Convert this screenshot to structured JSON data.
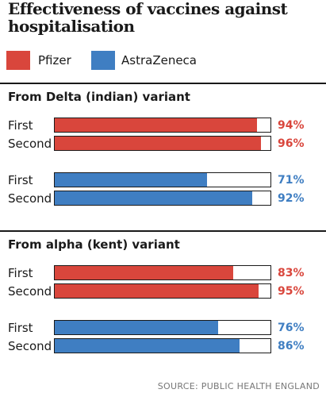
{
  "title": "Effectiveness of vaccines against hospitalisation",
  "legend": [
    {
      "label": "Pfizer",
      "color": "#d9463c"
    },
    {
      "label": "AstraZeneca",
      "color": "#3f7ec2"
    }
  ],
  "source": "SOURCE: PUBLIC HEALTH ENGLAND",
  "chart_data": {
    "type": "bar",
    "orientation": "horizontal",
    "title": "Effectiveness of vaccines against hospitalisation",
    "xlim": [
      0,
      100
    ],
    "unit": "%",
    "grid": false,
    "legend_position": "top-left",
    "series": [
      {
        "name": "Pfizer",
        "color": "#d9463c"
      },
      {
        "name": "AstraZeneca",
        "color": "#3f7ec2"
      }
    ],
    "groups": [
      {
        "title": "From Delta (indian) variant",
        "bars": [
          {
            "series": "Pfizer",
            "label": "First",
            "value": 94
          },
          {
            "series": "Pfizer",
            "label": "Second",
            "value": 96
          },
          {
            "series": "AstraZeneca",
            "label": "First",
            "value": 71
          },
          {
            "series": "AstraZeneca",
            "label": "Second",
            "value": 92
          }
        ]
      },
      {
        "title": "From alpha (kent) variant",
        "bars": [
          {
            "series": "Pfizer",
            "label": "First",
            "value": 83
          },
          {
            "series": "Pfizer",
            "label": "Second",
            "value": 95
          },
          {
            "series": "AstraZeneca",
            "label": "First",
            "value": 76
          },
          {
            "series": "AstraZeneca",
            "label": "Second",
            "value": 86
          }
        ]
      }
    ]
  }
}
